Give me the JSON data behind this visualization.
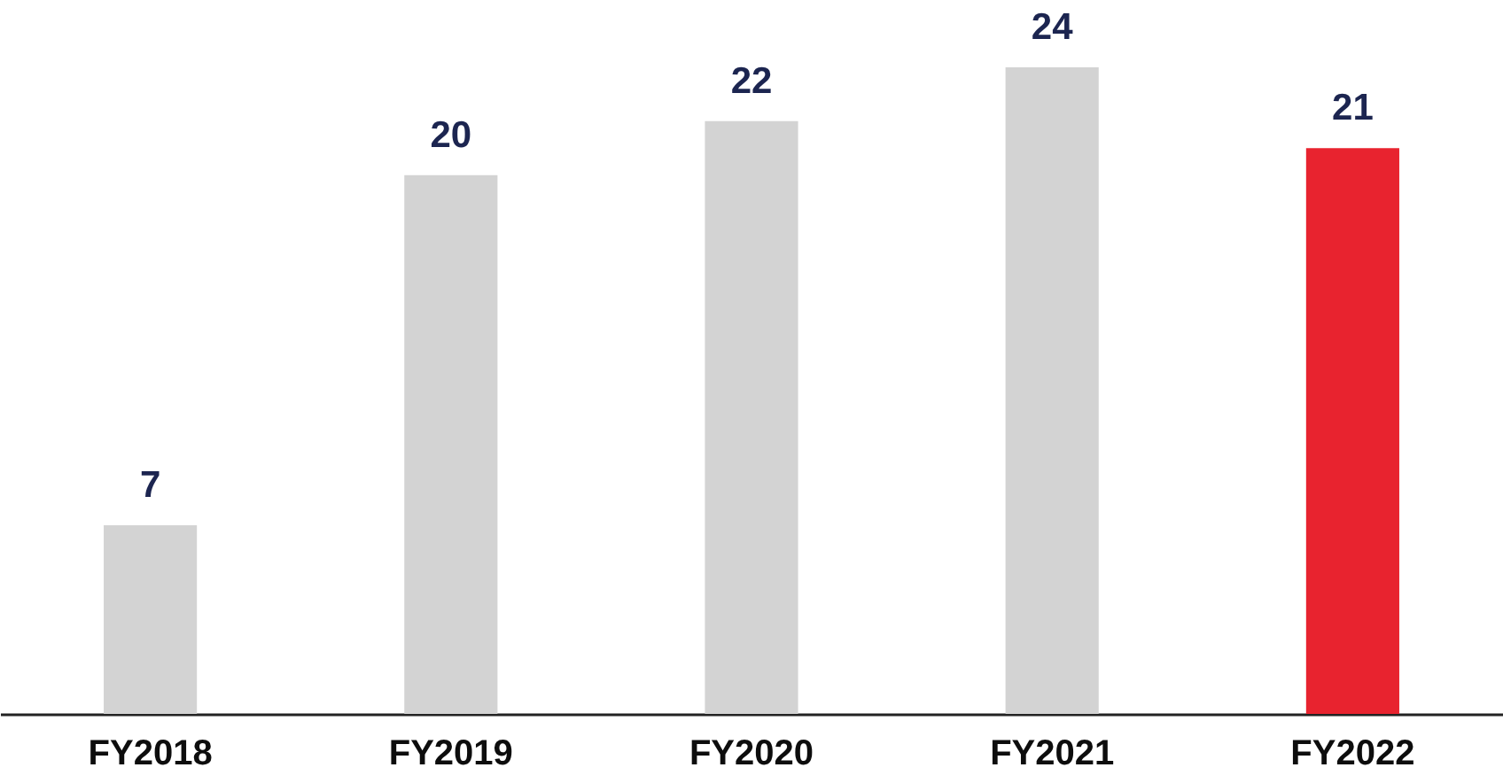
{
  "chart_data": {
    "type": "bar",
    "categories": [
      "FY2018",
      "FY2019",
      "FY2020",
      "FY2021",
      "FY2022"
    ],
    "values": [
      7,
      20,
      22,
      24,
      21
    ],
    "colors": [
      "#d3d3d3",
      "#d3d3d3",
      "#d3d3d3",
      "#d3d3d3",
      "#e8232f"
    ],
    "ylim": [
      0,
      26.5
    ],
    "data_labels": true
  }
}
